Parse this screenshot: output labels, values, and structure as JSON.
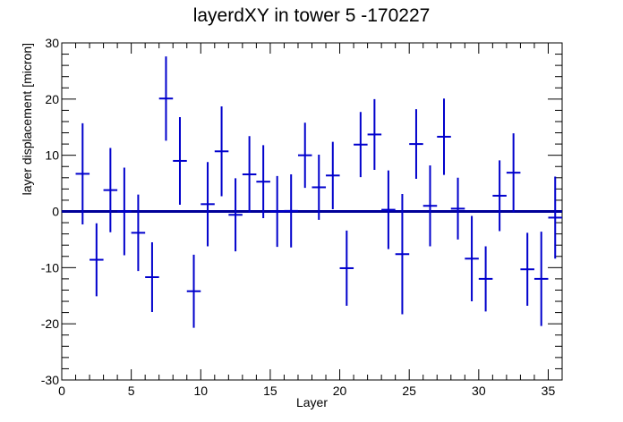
{
  "chart_data": {
    "type": "scatter",
    "title": "layerdXY in tower 5 -170227",
    "xlabel": "Layer",
    "ylabel": "layer displacement [micron]",
    "xlim": [
      0,
      36
    ],
    "ylim": [
      -30,
      30
    ],
    "x_ticks": [
      0,
      5,
      10,
      15,
      20,
      25,
      30,
      35
    ],
    "y_ticks": [
      -30,
      -20,
      -10,
      0,
      10,
      20,
      30
    ],
    "reference_line": 0,
    "series_color": "#0000cc",
    "reference_color": "#000099",
    "points": [
      {
        "x": 1.5,
        "y": 6.7,
        "err": 9.0
      },
      {
        "x": 2.5,
        "y": -8.6,
        "err": 6.5
      },
      {
        "x": 3.5,
        "y": 3.8,
        "err": 7.5
      },
      {
        "x": 4.5,
        "y": 0.0,
        "err": 7.8
      },
      {
        "x": 5.5,
        "y": -3.8,
        "err": 6.8
      },
      {
        "x": 6.5,
        "y": -11.7,
        "err": 6.2
      },
      {
        "x": 7.5,
        "y": 20.1,
        "err": 7.5
      },
      {
        "x": 8.5,
        "y": 9.0,
        "err": 7.8
      },
      {
        "x": 9.5,
        "y": -14.2,
        "err": 6.5
      },
      {
        "x": 10.5,
        "y": 1.3,
        "err": 7.5
      },
      {
        "x": 11.5,
        "y": 10.7,
        "err": 8.0
      },
      {
        "x": 12.5,
        "y": -0.6,
        "err": 6.5
      },
      {
        "x": 13.5,
        "y": 6.6,
        "err": 6.8
      },
      {
        "x": 14.5,
        "y": 5.3,
        "err": 6.5
      },
      {
        "x": 15.5,
        "y": 0.0,
        "err": 6.3
      },
      {
        "x": 16.5,
        "y": 0.1,
        "err": 6.5
      },
      {
        "x": 17.5,
        "y": 10.0,
        "err": 5.8
      },
      {
        "x": 18.5,
        "y": 4.3,
        "err": 5.8
      },
      {
        "x": 19.5,
        "y": 6.4,
        "err": 6.0
      },
      {
        "x": 20.5,
        "y": -10.1,
        "err": 6.7
      },
      {
        "x": 21.5,
        "y": 11.9,
        "err": 5.8
      },
      {
        "x": 22.5,
        "y": 13.7,
        "err": 6.3
      },
      {
        "x": 23.5,
        "y": 0.3,
        "err": 7.0
      },
      {
        "x": 24.5,
        "y": -7.6,
        "err": 10.7
      },
      {
        "x": 25.5,
        "y": 12.0,
        "err": 6.2
      },
      {
        "x": 26.5,
        "y": 1.0,
        "err": 7.2
      },
      {
        "x": 27.5,
        "y": 13.3,
        "err": 6.8
      },
      {
        "x": 28.5,
        "y": 0.5,
        "err": 5.5
      },
      {
        "x": 29.5,
        "y": -8.4,
        "err": 7.6
      },
      {
        "x": 30.5,
        "y": -12.0,
        "err": 5.8
      },
      {
        "x": 31.5,
        "y": 2.8,
        "err": 6.3
      },
      {
        "x": 32.5,
        "y": 6.9,
        "err": 7.0
      },
      {
        "x": 33.5,
        "y": -10.3,
        "err": 6.5
      },
      {
        "x": 34.5,
        "y": -12.0,
        "err": 8.4
      },
      {
        "x": 35.5,
        "y": -1.1,
        "err": 7.3
      }
    ]
  }
}
